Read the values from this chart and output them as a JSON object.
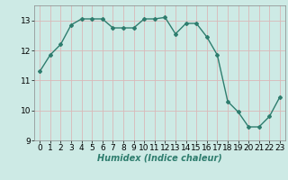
{
  "x": [
    0,
    1,
    2,
    3,
    4,
    5,
    6,
    7,
    8,
    9,
    10,
    11,
    12,
    13,
    14,
    15,
    16,
    17,
    18,
    19,
    20,
    21,
    22,
    23
  ],
  "y": [
    11.3,
    11.85,
    12.2,
    12.85,
    13.05,
    13.05,
    13.05,
    12.75,
    12.75,
    12.75,
    13.05,
    13.05,
    13.1,
    12.55,
    12.9,
    12.9,
    12.45,
    11.85,
    10.3,
    9.95,
    9.45,
    9.45,
    9.8,
    10.45
  ],
  "line_color": "#2e7d6e",
  "marker": "D",
  "marker_size": 2,
  "line_width": 1.0,
  "bg_color": "#cdeae5",
  "grid_color_major": "#d9b8b8",
  "grid_color_minor": "#d9b8b8",
  "xlabel": "Humidex (Indice chaleur)",
  "ylim": [
    9,
    13.5
  ],
  "xlim": [
    -0.5,
    23.5
  ],
  "yticks": [
    9,
    10,
    11,
    12,
    13
  ],
  "xticks": [
    0,
    1,
    2,
    3,
    4,
    5,
    6,
    7,
    8,
    9,
    10,
    11,
    12,
    13,
    14,
    15,
    16,
    17,
    18,
    19,
    20,
    21,
    22,
    23
  ],
  "xlabel_fontsize": 7,
  "tick_fontsize": 6.5
}
